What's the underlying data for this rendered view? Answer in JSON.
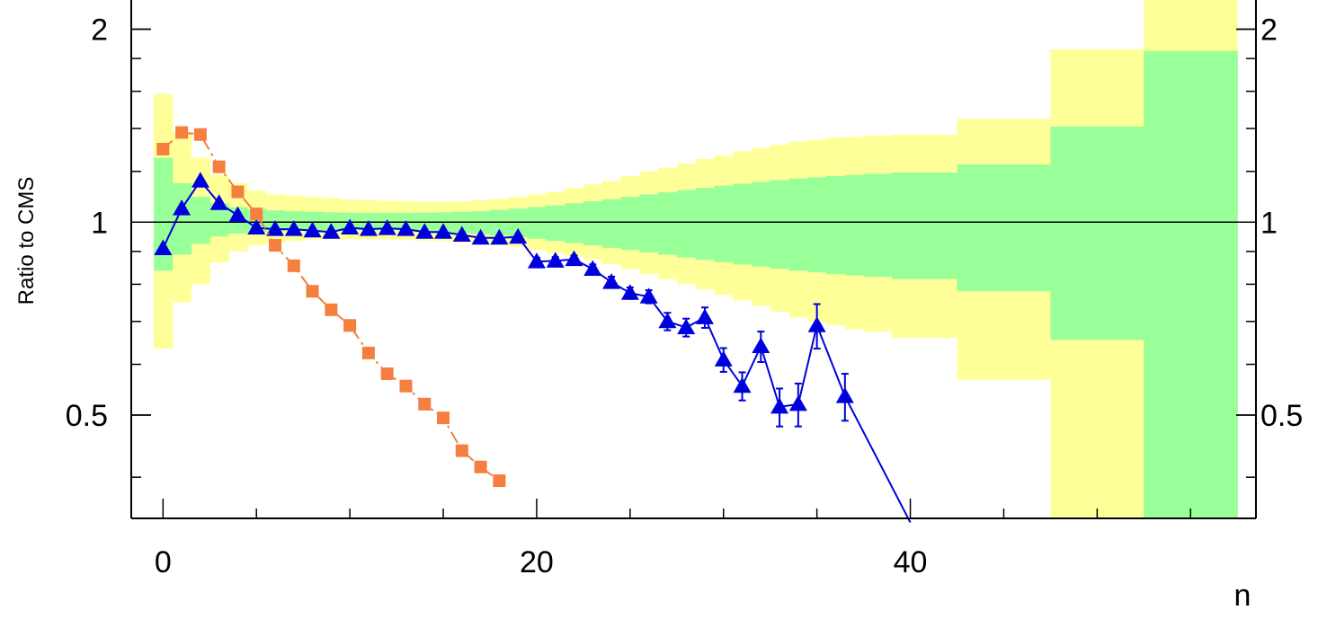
{
  "chart_data": {
    "type": "line",
    "title": "",
    "xlabel": "n",
    "ylabel": "Ratio to CMS",
    "xlim": [
      -1.7,
      58.5
    ],
    "ylim": [
      0.345,
      2.25
    ],
    "y_scale": "log",
    "x_ticks": [
      {
        "value": 0,
        "label": "0"
      },
      {
        "value": 20,
        "label": "20"
      },
      {
        "value": 40,
        "label": "40"
      }
    ],
    "y_ticks": [
      {
        "value": 0.5,
        "label": "0.5"
      },
      {
        "value": 1,
        "label": "1"
      },
      {
        "value": 2,
        "label": "2"
      }
    ],
    "reference_line": 1,
    "bands": [
      {
        "name": "",
        "color": "#ffff99",
        "kind": "outer",
        "bins": [
          [
            -0.5,
            0.5,
            0.635,
            1.585
          ],
          [
            0.5,
            1.5,
            0.75,
            1.38
          ],
          [
            1.5,
            2.5,
            0.8,
            1.26
          ],
          [
            2.5,
            3.5,
            0.865,
            1.185
          ],
          [
            3.5,
            4.5,
            0.9,
            1.15
          ],
          [
            4.5,
            5.5,
            0.92,
            1.12
          ],
          [
            5.5,
            6.5,
            0.93,
            1.105
          ],
          [
            6.5,
            7.5,
            0.935,
            1.1
          ],
          [
            7.5,
            8.5,
            0.94,
            1.095
          ],
          [
            8.5,
            9.5,
            0.94,
            1.09
          ],
          [
            9.5,
            10.5,
            0.94,
            1.085
          ],
          [
            10.5,
            11.5,
            0.94,
            1.082
          ],
          [
            11.5,
            12.5,
            0.94,
            1.08
          ],
          [
            12.5,
            13.5,
            0.938,
            1.078
          ],
          [
            13.5,
            14.5,
            0.936,
            1.076
          ],
          [
            14.5,
            15.5,
            0.934,
            1.076
          ],
          [
            15.5,
            16.5,
            0.93,
            1.078
          ],
          [
            16.5,
            17.5,
            0.925,
            1.082
          ],
          [
            17.5,
            18.5,
            0.92,
            1.088
          ],
          [
            18.5,
            19.5,
            0.915,
            1.095
          ],
          [
            19.5,
            20.5,
            0.905,
            1.105
          ],
          [
            20.5,
            21.5,
            0.895,
            1.115
          ],
          [
            21.5,
            22.5,
            0.885,
            1.13
          ],
          [
            22.5,
            23.5,
            0.875,
            1.145
          ],
          [
            23.5,
            24.5,
            0.86,
            1.16
          ],
          [
            24.5,
            25.5,
            0.845,
            1.18
          ],
          [
            25.5,
            26.5,
            0.83,
            1.2
          ],
          [
            26.5,
            27.5,
            0.815,
            1.215
          ],
          [
            27.5,
            28.5,
            0.8,
            1.235
          ],
          [
            28.5,
            29.5,
            0.785,
            1.255
          ],
          [
            29.5,
            30.5,
            0.77,
            1.27
          ],
          [
            30.5,
            31.5,
            0.755,
            1.29
          ],
          [
            31.5,
            32.5,
            0.74,
            1.305
          ],
          [
            32.5,
            33.5,
            0.725,
            1.32
          ],
          [
            33.5,
            34.5,
            0.71,
            1.335
          ],
          [
            34.5,
            35.5,
            0.7,
            1.345
          ],
          [
            35.5,
            36.5,
            0.69,
            1.355
          ],
          [
            36.5,
            37.5,
            0.68,
            1.36
          ],
          [
            37.5,
            39,
            0.675,
            1.365
          ],
          [
            39,
            42.5,
            0.66,
            1.37
          ],
          [
            42.5,
            47.5,
            0.568,
            1.45
          ],
          [
            47.5,
            52.5,
            0.345,
            1.86
          ],
          [
            52.5,
            57.5,
            0.345,
            2.25
          ]
        ]
      },
      {
        "name": "",
        "color": "#99ff99",
        "kind": "inner",
        "bins": [
          [
            -0.5,
            0.5,
            0.84,
            1.26
          ],
          [
            0.5,
            1.5,
            0.89,
            1.15
          ],
          [
            1.5,
            2.5,
            0.925,
            1.095
          ],
          [
            2.5,
            3.5,
            0.95,
            1.07
          ],
          [
            3.5,
            4.5,
            0.96,
            1.055
          ],
          [
            4.5,
            5.5,
            0.965,
            1.048
          ],
          [
            5.5,
            6.5,
            0.968,
            1.043
          ],
          [
            6.5,
            7.5,
            0.97,
            1.04
          ],
          [
            7.5,
            8.5,
            0.971,
            1.038
          ],
          [
            8.5,
            9.5,
            0.972,
            1.036
          ],
          [
            9.5,
            10.5,
            0.972,
            1.035
          ],
          [
            10.5,
            11.5,
            0.972,
            1.034
          ],
          [
            11.5,
            12.5,
            0.971,
            1.034
          ],
          [
            12.5,
            13.5,
            0.97,
            1.034
          ],
          [
            13.5,
            14.5,
            0.968,
            1.035
          ],
          [
            14.5,
            15.5,
            0.966,
            1.036
          ],
          [
            15.5,
            16.5,
            0.962,
            1.038
          ],
          [
            16.5,
            17.5,
            0.958,
            1.041
          ],
          [
            17.5,
            18.5,
            0.953,
            1.045
          ],
          [
            18.5,
            19.5,
            0.948,
            1.05
          ],
          [
            19.5,
            20.5,
            0.942,
            1.056
          ],
          [
            20.5,
            21.5,
            0.935,
            1.062
          ],
          [
            21.5,
            22.5,
            0.928,
            1.07
          ],
          [
            22.5,
            23.5,
            0.92,
            1.078
          ],
          [
            23.5,
            24.5,
            0.912,
            1.086
          ],
          [
            24.5,
            25.5,
            0.905,
            1.095
          ],
          [
            25.5,
            26.5,
            0.897,
            1.105
          ],
          [
            26.5,
            27.5,
            0.889,
            1.113
          ],
          [
            27.5,
            28.5,
            0.881,
            1.122
          ],
          [
            28.5,
            29.5,
            0.873,
            1.131
          ],
          [
            29.5,
            30.5,
            0.866,
            1.14
          ],
          [
            30.5,
            31.5,
            0.859,
            1.148
          ],
          [
            31.5,
            32.5,
            0.852,
            1.156
          ],
          [
            32.5,
            33.5,
            0.846,
            1.163
          ],
          [
            33.5,
            34.5,
            0.84,
            1.17
          ],
          [
            34.5,
            35.5,
            0.835,
            1.175
          ],
          [
            35.5,
            36.5,
            0.83,
            1.18
          ],
          [
            36.5,
            37.5,
            0.826,
            1.185
          ],
          [
            37.5,
            39,
            0.822,
            1.19
          ],
          [
            39,
            42.5,
            0.815,
            1.195
          ],
          [
            42.5,
            47.5,
            0.78,
            1.23
          ],
          [
            47.5,
            52.5,
            0.655,
            1.41
          ],
          [
            52.5,
            57.5,
            0.345,
            1.85
          ]
        ]
      }
    ],
    "series": [
      {
        "name": "",
        "color": "#0000dd",
        "marker": "triangle",
        "line": "solid",
        "points": [
          [
            0,
            0.91,
            0
          ],
          [
            1,
            1.05,
            0
          ],
          [
            2,
            1.16,
            0
          ],
          [
            3,
            1.07,
            0
          ],
          [
            4,
            1.025,
            0
          ],
          [
            5,
            0.98,
            0
          ],
          [
            6,
            0.975,
            0
          ],
          [
            7,
            0.975,
            0
          ],
          [
            8,
            0.97,
            0
          ],
          [
            9,
            0.965,
            0
          ],
          [
            10,
            0.98,
            0
          ],
          [
            11,
            0.975,
            0
          ],
          [
            12,
            0.978,
            0
          ],
          [
            13,
            0.975,
            0
          ],
          [
            14,
            0.965,
            0
          ],
          [
            15,
            0.965,
            0
          ],
          [
            16,
            0.955,
            0
          ],
          [
            17,
            0.945,
            0
          ],
          [
            18,
            0.945,
            0
          ],
          [
            19,
            0.948,
            0
          ],
          [
            20,
            0.868,
            0.012
          ],
          [
            21,
            0.87,
            0.012
          ],
          [
            22,
            0.875,
            0.012
          ],
          [
            23,
            0.845,
            0.014
          ],
          [
            24,
            0.806,
            0.016
          ],
          [
            25,
            0.775,
            0.016
          ],
          [
            26,
            0.765,
            0.018
          ],
          [
            27,
            0.7,
            0.022
          ],
          [
            28,
            0.685,
            0.022
          ],
          [
            29,
            0.71,
            0.026
          ],
          [
            30,
            0.61,
            0.026
          ],
          [
            31,
            0.555,
            0.028
          ],
          [
            32,
            0.64,
            0.035
          ],
          [
            33,
            0.515,
            0.035
          ],
          [
            34,
            0.52,
            0.04
          ],
          [
            35,
            0.69,
            0.055
          ],
          [
            36.5,
            0.535,
            0.045
          ],
          [
            40,
            0.34,
            0
          ]
        ]
      },
      {
        "name": "",
        "color": "#f47f3f",
        "marker": "square",
        "line": "dashdot",
        "points": [
          [
            0,
            1.3
          ],
          [
            1,
            1.38
          ],
          [
            2,
            1.37
          ],
          [
            3,
            1.22
          ],
          [
            4,
            1.115
          ],
          [
            5,
            1.03
          ],
          [
            6,
            0.92
          ],
          [
            7,
            0.855
          ],
          [
            8,
            0.78
          ],
          [
            9,
            0.73
          ],
          [
            10,
            0.69
          ],
          [
            11,
            0.625
          ],
          [
            12,
            0.58
          ],
          [
            13,
            0.555
          ],
          [
            14,
            0.52
          ],
          [
            15,
            0.495
          ],
          [
            16,
            0.44
          ],
          [
            17,
            0.415
          ],
          [
            18,
            0.395
          ]
        ]
      }
    ],
    "grid": false,
    "legend": "none"
  }
}
